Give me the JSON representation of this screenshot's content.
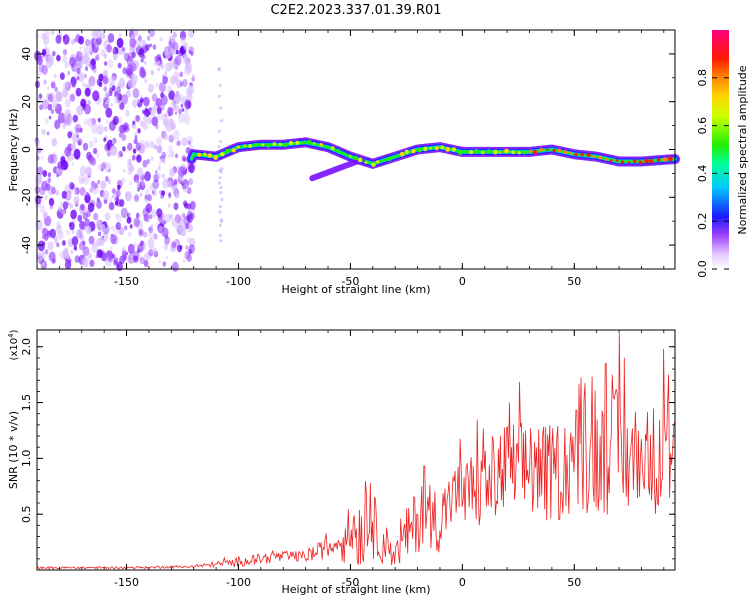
{
  "title": "C2E2.2023.337.01.39.R01",
  "colors": {
    "signal": "#ee2222",
    "snr_line": "#ee2222",
    "axis": "#000000",
    "noise": "#7711ff",
    "background": "#ffffff"
  },
  "chart_data": [
    {
      "type": "heatmap",
      "xlabel": "Height of straight line (km)",
      "ylabel": "Frequency (Hz)",
      "xlim": [
        -190,
        95
      ],
      "ylim": [
        -50,
        50
      ],
      "xticks": [
        -150,
        -100,
        -50,
        0,
        50
      ],
      "yticks": [
        -40,
        -20,
        0,
        20,
        40
      ],
      "grid": false,
      "noise_region_x": [
        -190,
        -120
      ],
      "signal_track": [
        {
          "x": -120,
          "y": -2
        },
        {
          "x": -110,
          "y": -3
        },
        {
          "x": -100,
          "y": 1
        },
        {
          "x": -90,
          "y": 2
        },
        {
          "x": -80,
          "y": 2
        },
        {
          "x": -70,
          "y": 3
        },
        {
          "x": -60,
          "y": 1
        },
        {
          "x": -50,
          "y": -3
        },
        {
          "x": -40,
          "y": -6
        },
        {
          "x": -30,
          "y": -3
        },
        {
          "x": -20,
          "y": 0
        },
        {
          "x": -10,
          "y": 1
        },
        {
          "x": 0,
          "y": -1
        },
        {
          "x": 10,
          "y": -1
        },
        {
          "x": 20,
          "y": -1
        },
        {
          "x": 30,
          "y": -1
        },
        {
          "x": 40,
          "y": 0
        },
        {
          "x": 50,
          "y": -2
        },
        {
          "x": 60,
          "y": -3
        },
        {
          "x": 70,
          "y": -5
        },
        {
          "x": 80,
          "y": -5
        },
        {
          "x": 95,
          "y": -4
        }
      ],
      "colorbar": {
        "label": "Normalized spectral amplitude",
        "range": [
          0.0,
          1.0
        ],
        "ticks": [
          "0.0",
          "0.2",
          "0.4",
          "0.6",
          "0.8"
        ],
        "tick_values": [
          0.0,
          0.2,
          0.4,
          0.6,
          0.8
        ]
      }
    },
    {
      "type": "line",
      "xlabel": "Height of straight line (km)",
      "ylabel": "SNR (10 * v/v)",
      "y_exponent_label": "(x10",
      "y_exponent_sup": "4",
      "y_exponent_close": ")",
      "xlim": [
        -190,
        95
      ],
      "ylim": [
        0,
        2.15
      ],
      "xticks": [
        -150,
        -100,
        -50,
        0,
        50
      ],
      "yticks": [
        "0.5",
        "1.0",
        "1.5",
        "2.0"
      ],
      "ytick_values": [
        0.5,
        1.0,
        1.5,
        2.0
      ],
      "grid": false,
      "series": [
        {
          "x": [
            -190,
            -150,
            -120,
            -110,
            -100,
            -90,
            -80,
            -70,
            -60,
            -55,
            -50,
            -45,
            -40,
            -35,
            -30,
            -25,
            -20,
            -15,
            -10,
            -5,
            0,
            10,
            20,
            30,
            40,
            50,
            60,
            70,
            80,
            90,
            95
          ],
          "mean": [
            0.02,
            0.02,
            0.03,
            0.05,
            0.07,
            0.1,
            0.12,
            0.12,
            0.2,
            0.25,
            0.33,
            0.35,
            0.4,
            0.25,
            0.12,
            0.3,
            0.45,
            0.5,
            0.45,
            0.6,
            0.65,
            0.75,
            0.9,
            0.9,
            0.85,
            1.0,
            1.0,
            1.05,
            1.0,
            1.0,
            1.0
          ],
          "spread": [
            0.01,
            0.01,
            0.01,
            0.03,
            0.04,
            0.05,
            0.05,
            0.05,
            0.1,
            0.2,
            0.25,
            0.35,
            0.3,
            0.2,
            0.1,
            0.25,
            0.3,
            0.3,
            0.3,
            0.35,
            0.35,
            0.4,
            0.45,
            0.45,
            0.45,
            0.5,
            0.5,
            0.6,
            0.45,
            0.55,
            0.45
          ],
          "peaks": [
            {
              "x": -41,
              "y": 0.78
            },
            {
              "x": -17,
              "y": 0.93
            },
            {
              "x": 21,
              "y": 1.5
            },
            {
              "x": 64,
              "y": 1.85
            },
            {
              "x": 70,
              "y": 2.12
            },
            {
              "x": 90,
              "y": 1.98
            }
          ]
        }
      ]
    }
  ]
}
